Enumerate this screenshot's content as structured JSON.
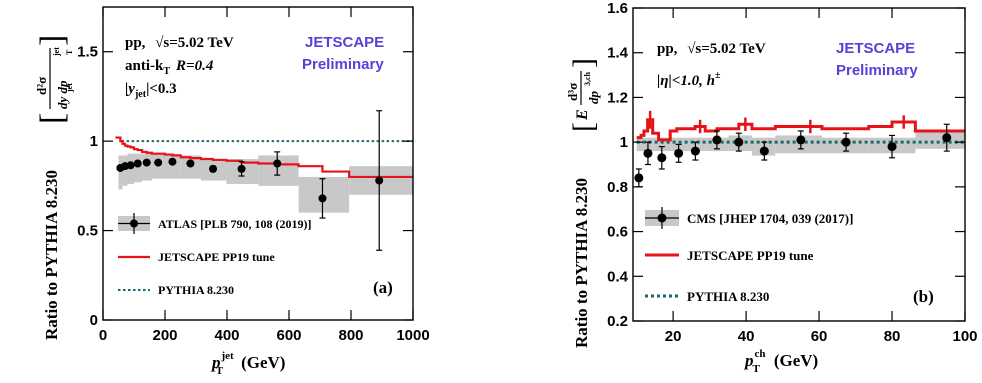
{
  "colors": {
    "jetscape": "#e8131a",
    "pythia": "#1a6b6b",
    "data": "#000000",
    "band": "#c8c8c8",
    "preliminary": "#5b3fd6"
  },
  "chart_data": [
    {
      "type": "line",
      "panel_tag": "(a)",
      "system_label": "pp,",
      "energy_label": "√s=5.02 TeV",
      "algo_label": "anti-k",
      "algo_sub": "T",
      "radius_label": "R=0.4",
      "cut_label": "|y",
      "cut_sub": "jet",
      "cut_suffix": "|<0.3",
      "collab_line1": "JETSCAPE",
      "collab_line2": "Preliminary",
      "ylabel_text": "Ratio to PYTHIA 8.230",
      "ylabel_frac_num": "d²σ",
      "ylabel_frac_den": "dy  dp",
      "ylabel_sub_jet": "jet",
      "ylabel_sub_T": "T",
      "ylabel_sup_jet": "jet",
      "xlabel_main": "p",
      "xlabel_sup": "jet",
      "xlabel_sub": "T",
      "xlabel_unit": "(GeV)",
      "xlim": [
        0,
        1000
      ],
      "ylim": [
        0,
        1.75
      ],
      "x_ticks": [
        0,
        200,
        400,
        600,
        800,
        1000
      ],
      "y_ticks": [
        0,
        0.5,
        1,
        1.5
      ],
      "x_tick_labels": [
        "0",
        "200",
        "400",
        "600",
        "800",
        "1000"
      ],
      "y_tick_labels": [
        "0",
        "0.5",
        "1",
        "1.5"
      ],
      "legend": [
        {
          "label": "ATLAS [PLB 790, 108 (2019)]",
          "kind": "data"
        },
        {
          "label": "JETSCAPE PP19 tune",
          "kind": "jetscape"
        },
        {
          "label": "PYTHIA 8.230",
          "kind": "pythia"
        }
      ],
      "series": [
        {
          "name": "ATLAS [PLB 790, 108 (2019)]",
          "kind": "data",
          "x": [
            56,
            71,
            89,
            112,
            141,
            178,
            224,
            282,
            355,
            447,
            562,
            708,
            891
          ],
          "y": [
            0.85,
            0.86,
            0.865,
            0.875,
            0.88,
            0.88,
            0.885,
            0.875,
            0.845,
            0.845,
            0.875,
            0.68,
            0.78
          ],
          "yerr": [
            0.01,
            0.01,
            0.01,
            0.01,
            0.01,
            0.01,
            0.01,
            0.01,
            0.015,
            0.04,
            0.065,
            0.11,
            0.39
          ],
          "band_xlo": [
            50,
            63,
            79,
            100,
            126,
            158,
            200,
            251,
            316,
            398,
            501,
            631,
            794
          ],
          "band_xhi": [
            63,
            79,
            100,
            126,
            158,
            200,
            251,
            316,
            398,
            501,
            631,
            794,
            1000
          ],
          "band_lo": [
            0.73,
            0.75,
            0.76,
            0.77,
            0.78,
            0.79,
            0.79,
            0.79,
            0.78,
            0.76,
            0.75,
            0.6,
            0.7
          ],
          "band_hi": [
            0.92,
            0.92,
            0.93,
            0.93,
            0.93,
            0.93,
            0.93,
            0.92,
            0.9,
            0.9,
            0.92,
            0.8,
            0.86
          ]
        },
        {
          "name": "JETSCAPE PP19 tune",
          "kind": "jetscape",
          "edges": [
            40,
            50,
            56,
            63,
            71,
            79,
            89,
            100,
            112,
            126,
            141,
            158,
            178,
            200,
            224,
            251,
            282,
            316,
            355,
            398,
            447,
            501,
            562,
            631,
            708,
            794,
            891,
            1000
          ],
          "values": [
            1.02,
            1.02,
            1.0,
            0.985,
            0.975,
            0.97,
            0.965,
            0.955,
            0.95,
            0.94,
            0.935,
            0.93,
            0.93,
            0.925,
            0.92,
            0.91,
            0.905,
            0.9,
            0.895,
            0.89,
            0.88,
            0.875,
            0.87,
            0.86,
            0.83,
            0.8,
            0.8
          ]
        },
        {
          "name": "PYTHIA 8.230",
          "kind": "pythia",
          "x": [
            60,
            1000
          ],
          "y": [
            1.0,
            1.0
          ]
        }
      ]
    },
    {
      "type": "line",
      "panel_tag": "(b)",
      "system_label": "pp,",
      "energy_label": "√s=5.02 TeV",
      "eta_label": "|η|<1.0, h",
      "eta_sup": "±",
      "collab_line1": "JETSCAPE",
      "collab_line2": "Preliminary",
      "ylabel_text": "Ratio to PYTHIA 8.230",
      "ylabel_E": "E",
      "ylabel_frac_num": "d³σ",
      "ylabel_frac_den": "dp",
      "ylabel_frac_sup": "3,ch",
      "xlabel_main": "p",
      "xlabel_sup": "ch",
      "xlabel_sub": "T",
      "xlabel_unit": "(GeV)",
      "xlim": [
        9,
        100
      ],
      "ylim": [
        0.2,
        1.6
      ],
      "x_ticks": [
        20,
        40,
        60,
        80,
        100
      ],
      "y_ticks": [
        0.2,
        0.4,
        0.6,
        0.8,
        1,
        1.2,
        1.4,
        1.6
      ],
      "x_tick_labels": [
        "20",
        "40",
        "60",
        "80",
        "100"
      ],
      "y_tick_labels": [
        "0.2",
        "0.4",
        "0.6",
        "0.8",
        "1",
        "1.2",
        "1.4",
        "1.6"
      ],
      "legend": [
        {
          "label": "CMS [JHEP 1704, 039 (2017)]",
          "kind": "data"
        },
        {
          "label": "JETSCAPE PP19 tune",
          "kind": "jetscape"
        },
        {
          "label": "PYTHIA 8.230",
          "kind": "pythia"
        }
      ],
      "series": [
        {
          "name": "CMS [JHEP 1704, 039 (2017)]",
          "kind": "data",
          "x": [
            10.6,
            13.1,
            16.9,
            21.5,
            26.1,
            32.0,
            38.0,
            45.0,
            55.0,
            67.4,
            80.0,
            95.0
          ],
          "y": [
            0.84,
            0.95,
            0.93,
            0.95,
            0.96,
            1.01,
            1.0,
            0.96,
            1.01,
            1.0,
            0.98,
            1.02
          ],
          "yerr": [
            0.04,
            0.05,
            0.05,
            0.04,
            0.04,
            0.04,
            0.04,
            0.04,
            0.04,
            0.04,
            0.05,
            0.06
          ],
          "band_xlo": [
            10.0,
            11.2,
            14.4,
            19.2,
            24.0,
            28.8,
            35.2,
            41.6,
            48.0,
            60.8,
            73.6,
            86.4
          ],
          "band_xhi": [
            11.2,
            14.4,
            19.2,
            24.0,
            28.8,
            35.2,
            41.6,
            48.0,
            60.8,
            73.6,
            86.4,
            100.0
          ],
          "band_lo": [
            0.96,
            0.96,
            0.96,
            0.96,
            0.96,
            0.96,
            0.96,
            0.94,
            0.95,
            0.95,
            0.95,
            0.97
          ],
          "band_hi": [
            1.02,
            1.02,
            1.02,
            1.02,
            1.02,
            1.02,
            1.03,
            1.02,
            1.03,
            1.02,
            1.02,
            1.05
          ]
        },
        {
          "name": "JETSCAPE PP19 tune",
          "kind": "jetscape",
          "edges": [
            10.0,
            11.2,
            12.0,
            13.0,
            14.4,
            16.0,
            19.2,
            21.0,
            24.0,
            26.0,
            28.8,
            32.0,
            35.2,
            38.0,
            41.6,
            48.0,
            54.4,
            60.8,
            67.2,
            73.6,
            80.0,
            86.4,
            100.0
          ],
          "values": [
            1.02,
            1.03,
            1.05,
            1.1,
            1.04,
            1.01,
            1.05,
            1.06,
            1.06,
            1.07,
            1.05,
            1.06,
            1.06,
            1.08,
            1.06,
            1.07,
            1.07,
            1.06,
            1.06,
            1.07,
            1.09,
            1.05
          ],
          "yerr": [
            0.0,
            0.0,
            0.0,
            0.04,
            0.0,
            0.0,
            0.0,
            0.0,
            0.0,
            0.03,
            0.0,
            0.0,
            0.0,
            0.03,
            0.0,
            0.0,
            0.03,
            0.0,
            0.0,
            0.0,
            0.03,
            0.0
          ],
          "x": [
            10.6,
            11.6,
            12.5,
            13.7,
            15.2,
            17.6,
            20.1,
            22.5,
            25.0,
            27.4,
            30.4,
            33.6,
            36.6,
            39.8,
            44.8,
            51.2,
            57.6,
            64.0,
            70.4,
            76.8,
            83.2,
            93.2
          ]
        },
        {
          "name": "PYTHIA 8.230",
          "kind": "pythia",
          "x": [
            10,
            100
          ],
          "y": [
            1.0,
            1.0
          ]
        }
      ]
    }
  ]
}
